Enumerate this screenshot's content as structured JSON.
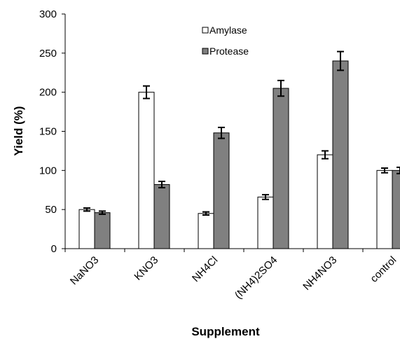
{
  "chart_data": {
    "type": "bar",
    "title": "",
    "xlabel": "Supplement",
    "ylabel": "Yield (%)",
    "categories": [
      "NaNO3",
      "KNO3",
      "NH4Cl",
      "(NH4)2SO4",
      "NH4NO3",
      "control"
    ],
    "ylim": [
      0,
      300
    ],
    "yticks": [
      "0",
      "50",
      "100",
      "150",
      "200",
      "250",
      "300"
    ],
    "grid": false,
    "legend_position": "top-center",
    "series": [
      {
        "name": "Amylase",
        "color": "#ffffff",
        "values": [
          50,
          200,
          45,
          66,
          120,
          100
        ],
        "errors": [
          2,
          8,
          2,
          3,
          5,
          3
        ]
      },
      {
        "name": "Protease",
        "color": "#808080",
        "values": [
          46,
          82,
          148,
          205,
          240,
          100
        ],
        "errors": [
          2,
          4,
          7,
          10,
          12,
          4
        ]
      }
    ]
  }
}
